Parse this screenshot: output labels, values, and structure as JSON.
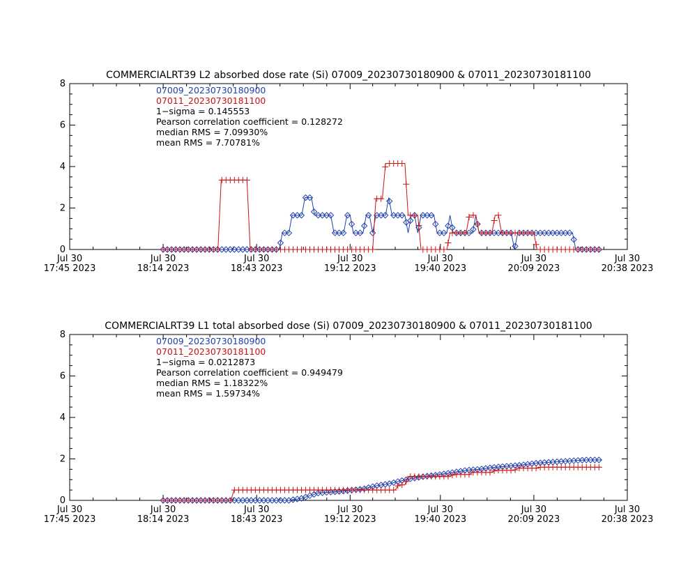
{
  "chart_data": [
    {
      "type": "line",
      "title": "COMMERCIALRT39 L2 absorbed dose rate (Si) 07009_20230730180900 & 07011_20230730181100",
      "xlabel": "",
      "ylabel": "",
      "ylim": [
        0,
        8
      ],
      "yticks": [
        "0",
        "2",
        "4",
        "6",
        "8"
      ],
      "xlim": [
        "2023-07-30 17:45",
        "2023-07-30 20:38"
      ],
      "xticks": [
        {
          "line1": "Jul 30",
          "line2": "17:45 2023",
          "t": "2023-07-30 17:45"
        },
        {
          "line1": "Jul 30",
          "line2": "18:14 2023",
          "t": "2023-07-30 18:14"
        },
        {
          "line1": "Jul 30",
          "line2": "18:43 2023",
          "t": "2023-07-30 18:43"
        },
        {
          "line1": "Jul 30",
          "line2": "19:12 2023",
          "t": "2023-07-30 19:12"
        },
        {
          "line1": "Jul 30",
          "line2": "19:40 2023",
          "t": "2023-07-30 19:40"
        },
        {
          "line1": "Jul 30",
          "line2": "20:09 2023",
          "t": "2023-07-30 20:09"
        },
        {
          "line1": "Jul 30",
          "line2": "20:38 2023",
          "t": "2023-07-30 20:38"
        }
      ],
      "annotations": {
        "series1_label": "07009_20230730180900",
        "series2_label": "07011_20230730181100",
        "sigma": "1−sigma = 0.145553",
        "pearson": "Pearson correlation coefficient = 0.128272",
        "median_rms": "median RMS = 7.09930%",
        "mean_rms": "mean RMS = 7.70781%"
      },
      "series": [
        {
          "name": "07009_20230730180900",
          "color": "#1f3fae",
          "marker": "diamond",
          "points": [
            [
              "18:14",
              0
            ],
            [
              "18:50",
              0
            ],
            [
              "18:51",
              0.8
            ],
            [
              "18:53",
              0.8
            ],
            [
              "18:54",
              1.65
            ],
            [
              "18:57",
              1.65
            ],
            [
              "18:58",
              2.5
            ],
            [
              "19:00",
              2.5
            ],
            [
              "19:01",
              1.65
            ],
            [
              "19:06",
              1.65
            ],
            [
              "19:07",
              0.8
            ],
            [
              "19:10",
              0.8
            ],
            [
              "19:11",
              1.65
            ],
            [
              "19:12",
              1.65
            ],
            [
              "19:13",
              0.8
            ],
            [
              "19:16",
              0.8
            ],
            [
              "19:17",
              1.65
            ],
            [
              "19:18",
              1.65
            ],
            [
              "19:19",
              0.8
            ],
            [
              "19:20",
              1.65
            ],
            [
              "19:23",
              1.65
            ],
            [
              "19:24",
              2.5
            ],
            [
              "19:25",
              1.65
            ],
            [
              "19:29",
              1.65
            ],
            [
              "19:30",
              0.8
            ],
            [
              "19:31",
              1.65
            ],
            [
              "19:32",
              1.65
            ],
            [
              "19:33",
              0.8
            ],
            [
              "19:34",
              1.65
            ],
            [
              "19:38",
              1.65
            ],
            [
              "19:39",
              0.8
            ],
            [
              "19:42",
              0.8
            ],
            [
              "19:43",
              1.65
            ],
            [
              "19:44",
              0.8
            ],
            [
              "19:50",
              0.8
            ],
            [
              "19:51",
              1.65
            ],
            [
              "19:52",
              0.8
            ],
            [
              "20:02",
              0.8
            ],
            [
              "20:03",
              0
            ],
            [
              "20:04",
              0.8
            ],
            [
              "20:21",
              0.8
            ],
            [
              "20:22",
              0
            ],
            [
              "20:30",
              0
            ]
          ]
        },
        {
          "name": "07011_20230730181100",
          "color": "#cc1111",
          "marker": "plus",
          "points": [
            [
              "18:14",
              0
            ],
            [
              "18:31",
              0
            ],
            [
              "18:32",
              3.35
            ],
            [
              "18:40",
              3.35
            ],
            [
              "18:41",
              0
            ],
            [
              "19:19",
              0
            ],
            [
              "19:20",
              2.45
            ],
            [
              "19:22",
              2.45
            ],
            [
              "19:23",
              4.15
            ],
            [
              "19:29",
              4.15
            ],
            [
              "19:30",
              1.65
            ],
            [
              "19:33",
              1.65
            ],
            [
              "19:34",
              0
            ],
            [
              "19:42",
              0
            ],
            [
              "19:43",
              0.8
            ],
            [
              "19:48",
              0.8
            ],
            [
              "19:49",
              1.65
            ],
            [
              "19:51",
              1.65
            ],
            [
              "19:52",
              0.8
            ],
            [
              "19:56",
              0.8
            ],
            [
              "19:57",
              1.65
            ],
            [
              "19:58",
              1.65
            ],
            [
              "19:59",
              0.8
            ],
            [
              "20:09",
              0.8
            ],
            [
              "20:10",
              0
            ],
            [
              "20:30",
              0
            ]
          ]
        }
      ]
    },
    {
      "type": "line",
      "title": "COMMERCIALRT39 L1 total absorbed dose (Si) 07009_20230730180900 & 07011_20230730181100",
      "xlabel": "",
      "ylabel": "",
      "ylim": [
        0,
        8
      ],
      "yticks": [
        "0",
        "2",
        "4",
        "6",
        "8"
      ],
      "xlim": [
        "2023-07-30 17:45",
        "2023-07-30 20:38"
      ],
      "xticks": [
        {
          "line1": "Jul 30",
          "line2": "17:45 2023",
          "t": "2023-07-30 17:45"
        },
        {
          "line1": "Jul 30",
          "line2": "18:14 2023",
          "t": "2023-07-30 18:14"
        },
        {
          "line1": "Jul 30",
          "line2": "18:43 2023",
          "t": "2023-07-30 18:43"
        },
        {
          "line1": "Jul 30",
          "line2": "19:12 2023",
          "t": "2023-07-30 19:12"
        },
        {
          "line1": "Jul 30",
          "line2": "19:40 2023",
          "t": "2023-07-30 19:40"
        },
        {
          "line1": "Jul 30",
          "line2": "20:09 2023",
          "t": "2023-07-30 20:09"
        },
        {
          "line1": "Jul 30",
          "line2": "20:38 2023",
          "t": "2023-07-30 20:38"
        }
      ],
      "annotations": {
        "series1_label": "07009_20230730180900",
        "series2_label": "07011_20230730181100",
        "sigma": "1−sigma = 0.0212873",
        "pearson": "Pearson correlation coefficient = 0.949479",
        "median_rms": "median RMS = 1.18322%",
        "mean_rms": "mean RMS = 1.59734%"
      },
      "series": [
        {
          "name": "07009_20230730180900",
          "color": "#1f3fae",
          "marker": "diamond",
          "points": [
            [
              "18:14",
              0
            ],
            [
              "18:53",
              0
            ],
            [
              "18:57",
              0.1
            ],
            [
              "19:00",
              0.25
            ],
            [
              "19:02",
              0.35
            ],
            [
              "19:06",
              0.4
            ],
            [
              "19:10",
              0.45
            ],
            [
              "19:16",
              0.55
            ],
            [
              "19:20",
              0.7
            ],
            [
              "19:24",
              0.8
            ],
            [
              "19:28",
              0.95
            ],
            [
              "19:31",
              1.05
            ],
            [
              "19:35",
              1.15
            ],
            [
              "19:40",
              1.25
            ],
            [
              "19:44",
              1.35
            ],
            [
              "19:48",
              1.45
            ],
            [
              "19:52",
              1.5
            ],
            [
              "19:57",
              1.6
            ],
            [
              "20:01",
              1.65
            ],
            [
              "20:05",
              1.7
            ],
            [
              "20:10",
              1.8
            ],
            [
              "20:15",
              1.85
            ],
            [
              "20:20",
              1.9
            ],
            [
              "20:25",
              1.95
            ],
            [
              "20:30",
              1.95
            ]
          ]
        },
        {
          "name": "07011_20230730181100",
          "color": "#cc1111",
          "marker": "plus",
          "points": [
            [
              "18:14",
              0
            ],
            [
              "18:35",
              0
            ],
            [
              "18:36",
              0.5
            ],
            [
              "19:26",
              0.5
            ],
            [
              "19:27",
              0.75
            ],
            [
              "19:29",
              0.75
            ],
            [
              "19:30",
              1.15
            ],
            [
              "19:43",
              1.15
            ],
            [
              "19:44",
              1.25
            ],
            [
              "19:49",
              1.25
            ],
            [
              "19:50",
              1.35
            ],
            [
              "19:56",
              1.35
            ],
            [
              "19:57",
              1.45
            ],
            [
              "20:03",
              1.45
            ],
            [
              "20:04",
              1.55
            ],
            [
              "20:10",
              1.55
            ],
            [
              "20:11",
              1.6
            ],
            [
              "20:30",
              1.6
            ]
          ]
        }
      ]
    }
  ]
}
